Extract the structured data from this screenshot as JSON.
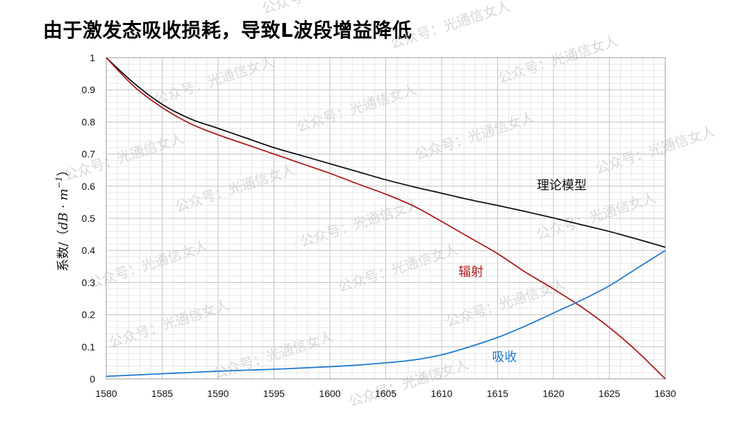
{
  "title": "由于激发态吸收损耗，导致L波段增益降低",
  "watermark": "公众号：光通信女人",
  "chart_data": {
    "type": "line",
    "title": "由于激发态吸收损耗，导致L波段增益降低",
    "xlabel": "",
    "ylabel": "系数/（dB · m⁻¹）",
    "ylabel_prefix": "系数/（",
    "ylabel_unit": "dB · m",
    "ylabel_exp": "−1",
    "ylabel_suffix": "）",
    "xlim": [
      1580,
      1630
    ],
    "ylim": [
      0,
      1
    ],
    "xticks": [
      1580,
      1585,
      1590,
      1595,
      1600,
      1605,
      1610,
      1615,
      1620,
      1625,
      1630
    ],
    "yticks": [
      0,
      0.1,
      0.2,
      0.3,
      0.4,
      0.5,
      0.6,
      0.7,
      0.8,
      0.9,
      1
    ],
    "ytick_labels": [
      "0",
      "0.1",
      "0.2",
      "0.3",
      "0.4",
      "0.5",
      "0.6",
      "0.7",
      "0.8",
      "0.9",
      "1"
    ],
    "grid": true,
    "minor_grid": true,
    "x": [
      1580,
      1582.5,
      1585,
      1587.5,
      1590,
      1592.5,
      1595,
      1597.5,
      1600,
      1602.5,
      1605,
      1607.5,
      1610,
      1612.5,
      1615,
      1617.5,
      1620,
      1622.5,
      1625,
      1627.5,
      1630
    ],
    "series": [
      {
        "name": "理论模型",
        "color": "#111111",
        "values": [
          1.0,
          0.92,
          0.855,
          0.81,
          0.78,
          0.75,
          0.72,
          0.695,
          0.67,
          0.645,
          0.62,
          0.598,
          0.578,
          0.558,
          0.54,
          0.521,
          0.501,
          0.48,
          0.459,
          0.435,
          0.41
        ]
      },
      {
        "name": "辐射",
        "color": "#b01a1a",
        "values": [
          1.0,
          0.91,
          0.845,
          0.795,
          0.76,
          0.73,
          0.7,
          0.67,
          0.64,
          0.607,
          0.575,
          0.538,
          0.49,
          0.44,
          0.39,
          0.332,
          0.28,
          0.224,
          0.16,
          0.085,
          0.0
        ]
      },
      {
        "name": "吸收",
        "color": "#1f7ad0",
        "values": [
          0.008,
          0.012,
          0.016,
          0.02,
          0.024,
          0.027,
          0.03,
          0.034,
          0.038,
          0.043,
          0.05,
          0.059,
          0.075,
          0.1,
          0.129,
          0.165,
          0.205,
          0.245,
          0.29,
          0.345,
          0.4
        ]
      }
    ],
    "annotations": [
      {
        "text": "理论模型",
        "x": 1618.5,
        "y": 0.59,
        "color": "#111111"
      },
      {
        "text": "辐射",
        "x": 1611.5,
        "y": 0.32,
        "color": "#b01a1a"
      },
      {
        "text": "吸收",
        "x": 1614.5,
        "y": 0.055,
        "color": "#1f7ad0"
      }
    ]
  }
}
